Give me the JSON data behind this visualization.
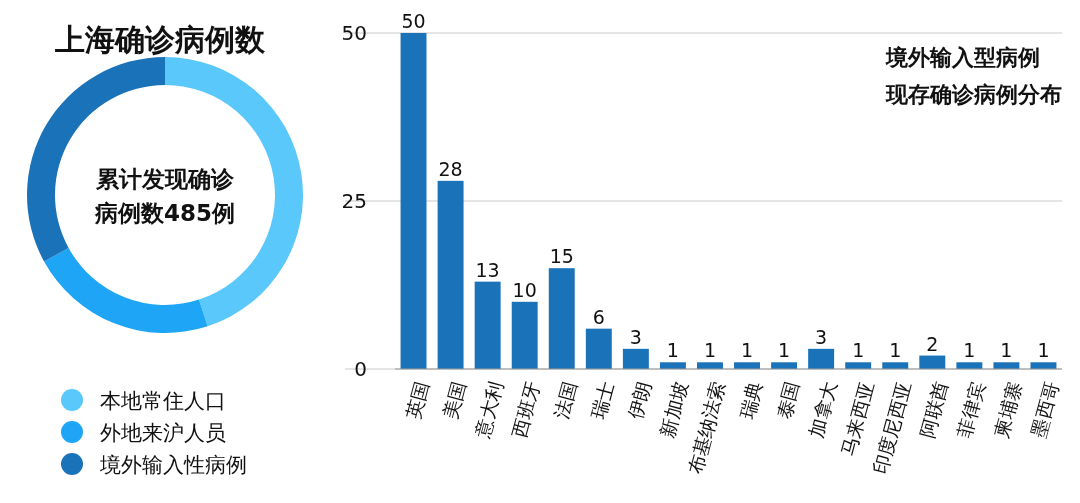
{
  "chart_data": [
    {
      "type": "donut",
      "title": "上海确诊病例数",
      "annotations": [
        "累计发现确诊",
        "病例数485例"
      ],
      "categories": [
        "本地常住人口",
        "外地来沪人员",
        "境外输入性病例"
      ],
      "values": [
        45,
        22,
        33
      ],
      "colors": [
        "#5ac8fa",
        "#1ea5f6",
        "#1a72b8"
      ],
      "legend": "bottom"
    },
    {
      "type": "bar",
      "title": "境外输入型病例",
      "subtitle": "现存确诊病例分布",
      "categories": [
        "英国",
        "美国",
        "意大利",
        "西班牙",
        "法国",
        "瑞士",
        "伊朗",
        "新加坡",
        "布基纳法索",
        "瑞典",
        "泰国",
        "加拿大",
        "马来西亚",
        "印度尼西亚",
        "阿联酋",
        "菲律宾",
        "柬埔寨",
        "墨西哥"
      ],
      "values": [
        50,
        28,
        13,
        10,
        15,
        6,
        3,
        1,
        1,
        1,
        1,
        3,
        1,
        1,
        2,
        1,
        1,
        1
      ],
      "color": "#1a72b8",
      "ylim": [
        0,
        50
      ],
      "yticks": [
        0,
        25,
        50
      ],
      "grid": "y",
      "data_labels": true
    }
  ]
}
